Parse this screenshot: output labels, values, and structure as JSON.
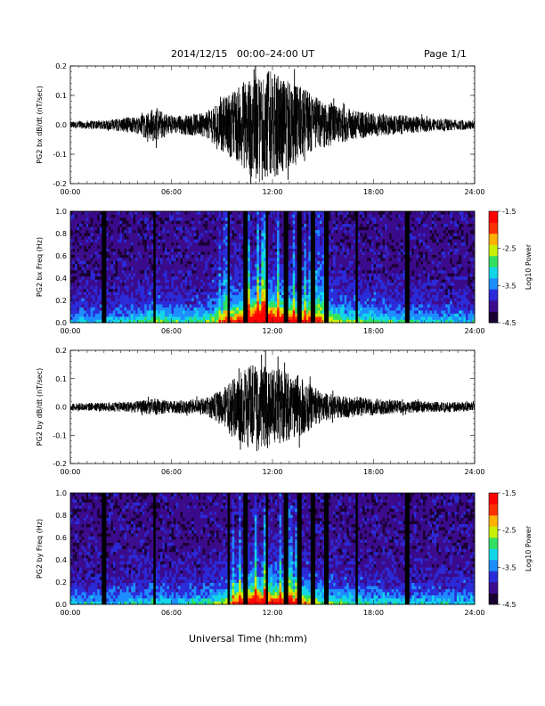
{
  "header": {
    "title": "2014/12/15   00:00–24:00 UT",
    "page": "Page 1/1"
  },
  "footer": {
    "xlabel": "Universal Time (hh:mm)"
  },
  "colors": {
    "trace": "#000000",
    "colormap": [
      "#1a0030",
      "#3b0b8c",
      "#2a2ad8",
      "#1c8cff",
      "#12d6e8",
      "#30e060",
      "#c8f000",
      "#ffb000",
      "#ff3000",
      "#ff0000"
    ]
  },
  "chart_data": [
    {
      "type": "line",
      "ylabel": "PG2 bx dB/dt (nT/sec)",
      "xlim": [
        "00:00",
        "24:00"
      ],
      "ylim": [
        -0.2,
        0.2
      ],
      "x_ticks": [
        "00:00",
        "06:00",
        "12:00",
        "18:00",
        "24:00"
      ],
      "y_ticks": [
        "-0.2",
        "-0.1",
        "0.0",
        "0.1",
        "0.2"
      ],
      "envelope": {
        "x_hours": [
          0,
          2,
          4,
          5,
          6,
          8,
          9,
          10,
          11,
          12,
          13,
          14,
          15,
          16,
          18,
          20,
          22,
          24
        ],
        "amplitude": [
          0.012,
          0.015,
          0.03,
          0.06,
          0.03,
          0.04,
          0.09,
          0.13,
          0.2,
          0.18,
          0.15,
          0.12,
          0.08,
          0.06,
          0.04,
          0.03,
          0.02,
          0.015
        ]
      }
    },
    {
      "type": "heatmap",
      "ylabel": "PG2 bx Freq (Hz)",
      "xlim": [
        "00:00",
        "24:00"
      ],
      "ylim": [
        0.0,
        1.0
      ],
      "x_ticks": [
        "00:00",
        "06:00",
        "12:00",
        "18:00",
        "24:00"
      ],
      "y_ticks": [
        "0.0",
        "0.2",
        "0.4",
        "0.6",
        "0.8",
        "1.0"
      ],
      "colorbar": {
        "label": "Log10 Power",
        "range": [
          -4.5,
          -1.5
        ],
        "ticks": [
          "-1.5",
          "-2.5",
          "-3.5",
          "-4.5"
        ]
      },
      "data_gaps_hours": [
        2,
        5,
        9.4,
        10.4,
        11.7,
        12.8,
        13.6,
        14.4,
        15.2,
        17,
        20
      ]
    },
    {
      "type": "line",
      "ylabel": "PG2 by dB/dt (nT/sec)",
      "xlim": [
        "00:00",
        "24:00"
      ],
      "ylim": [
        -0.2,
        0.2
      ],
      "x_ticks": [
        "00:00",
        "06:00",
        "12:00",
        "18:00",
        "24:00"
      ],
      "y_ticks": [
        "-0.2",
        "-0.1",
        "0.0",
        "0.1",
        "0.2"
      ],
      "envelope": {
        "x_hours": [
          0,
          2,
          4,
          5,
          6,
          8,
          9,
          10,
          11,
          12,
          13,
          14,
          15,
          16,
          18,
          20,
          22,
          24
        ],
        "amplitude": [
          0.012,
          0.015,
          0.02,
          0.03,
          0.02,
          0.03,
          0.06,
          0.12,
          0.16,
          0.14,
          0.12,
          0.09,
          0.05,
          0.04,
          0.03,
          0.02,
          0.018,
          0.015
        ]
      }
    },
    {
      "type": "heatmap",
      "ylabel": "PG2 by Freq (Hz)",
      "xlim": [
        "00:00",
        "24:00"
      ],
      "ylim": [
        0.0,
        1.0
      ],
      "x_ticks": [
        "00:00",
        "06:00",
        "12:00",
        "18:00",
        "24:00"
      ],
      "y_ticks": [
        "0.0",
        "0.2",
        "0.4",
        "0.6",
        "0.8",
        "1.0"
      ],
      "colorbar": {
        "label": "Log10 Power",
        "range": [
          -4.5,
          -1.5
        ],
        "ticks": [
          "-1.5",
          "-2.5",
          "-3.5",
          "-4.5"
        ]
      },
      "data_gaps_hours": [
        2,
        5,
        9.4,
        10.4,
        11.7,
        12.8,
        13.6,
        14.4,
        15.2,
        17,
        20
      ]
    }
  ]
}
